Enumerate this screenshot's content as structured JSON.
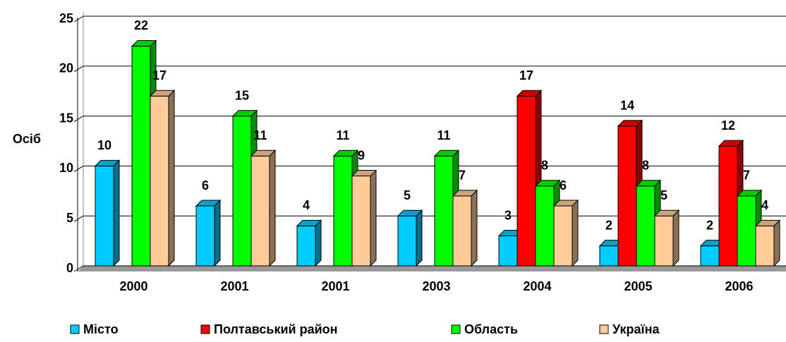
{
  "chart_data": {
    "type": "bar3d",
    "y_label": "Осіб",
    "categories": [
      "2000",
      "2001",
      "2001",
      "2003",
      "2004",
      "2005",
      "2006"
    ],
    "series": [
      {
        "name": "Місто",
        "color": "#00ccff",
        "values": [
          10,
          6,
          4,
          5,
          3,
          2,
          2
        ]
      },
      {
        "name": "Полтавський район",
        "color": "#ff0000",
        "values": [
          null,
          null,
          null,
          null,
          17,
          14,
          12
        ]
      },
      {
        "name": "Область",
        "color": "#00ff00",
        "values": [
          22,
          15,
          11,
          11,
          8,
          8,
          7
        ]
      },
      {
        "name": "Україна",
        "color": "#ffcc99",
        "values": [
          17,
          11,
          9,
          7,
          6,
          5,
          4
        ]
      }
    ],
    "ylim": [
      0,
      25
    ],
    "yticks": [
      0,
      5,
      10,
      15,
      20,
      25
    ],
    "grid": true,
    "legend": "bottom"
  }
}
